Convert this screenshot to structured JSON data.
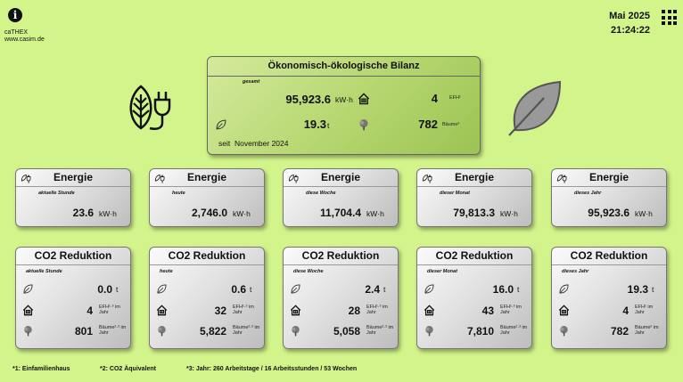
{
  "header": {
    "brand_line1": "caTHEX",
    "brand_line2": "www.casim.de",
    "month": "Mai 2025",
    "time": "21:24:22"
  },
  "summary": {
    "title": "Ökonomisch-ökologische Bilanz",
    "period_label": "gesamt",
    "energy_value": "95,923.6",
    "energy_unit": "kW·h",
    "efh_value": "4",
    "efh_unit": "EFH¹",
    "co2_value": "19.3",
    "co2_unit": "t",
    "trees_value": "782",
    "trees_unit": "Bäume²",
    "since_label": "seit",
    "since_value": "November 2024"
  },
  "energy_cards": [
    {
      "title": "Energie",
      "period": "aktuelle Stunde",
      "value": "23.6",
      "unit": "kW·h"
    },
    {
      "title": "Energie",
      "period": "heute",
      "value": "2,746.0",
      "unit": "kW·h"
    },
    {
      "title": "Energie",
      "period": "diese Woche",
      "value": "11,704.4",
      "unit": "kW·h"
    },
    {
      "title": "Energie",
      "period": "dieser Monat",
      "value": "79,813.3",
      "unit": "kW·h"
    },
    {
      "title": "Energie",
      "period": "dieses Jahr",
      "value": "95,923.6",
      "unit": "kW·h"
    }
  ],
  "co2_cards": [
    {
      "title": "CO2 Reduktion",
      "period": "aktuelle Stunde",
      "co2": "0.0",
      "co2_unit": "t",
      "efh": "4",
      "efh_unit": "EFH¹·³ im Jahr",
      "trees": "801",
      "trees_unit": "Bäume²·³ im Jahr"
    },
    {
      "title": "CO2 Reduktion",
      "period": "heute",
      "co2": "0.6",
      "co2_unit": "t",
      "efh": "32",
      "efh_unit": "EFH¹·³ im Jahr",
      "trees": "5,822",
      "trees_unit": "Bäume²·³ im Jahr"
    },
    {
      "title": "CO2 Reduktion",
      "period": "diese Woche",
      "co2": "2.4",
      "co2_unit": "t",
      "efh": "28",
      "efh_unit": "EFH¹·³ im Jahr",
      "trees": "5,058",
      "trees_unit": "Bäume²·³ im Jahr"
    },
    {
      "title": "CO2 Reduktion",
      "period": "dieser Monat",
      "co2": "16.0",
      "co2_unit": "t",
      "efh": "43",
      "efh_unit": "EFH¹·³ im Jahr",
      "trees": "7,810",
      "trees_unit": "Bäume²·³ im Jahr"
    },
    {
      "title": "CO2 Reduktion",
      "period": "dieses Jahr",
      "co2": "19.3",
      "co2_unit": "t",
      "efh": "4",
      "efh_unit": "EFH¹ im Jahr",
      "trees": "782",
      "trees_unit": "Bäume² im Jahr"
    }
  ],
  "footnotes": [
    "*1: Einfamilienhaus",
    "*2: CO2 Äquivalent",
    "*3: Jahr: 260 Arbeitstage / 16 Arbeitsstunden / 53 Wochen"
  ],
  "icons": {
    "info": "info-icon",
    "menu": "grid-menu-icon",
    "plug": "plug-leaf-icon",
    "leaf": "leaf-icon",
    "house": "house-icon",
    "tree": "tree-icon"
  },
  "colors": {
    "background": "#d2f48a",
    "summary_card": "#b5d66e"
  }
}
